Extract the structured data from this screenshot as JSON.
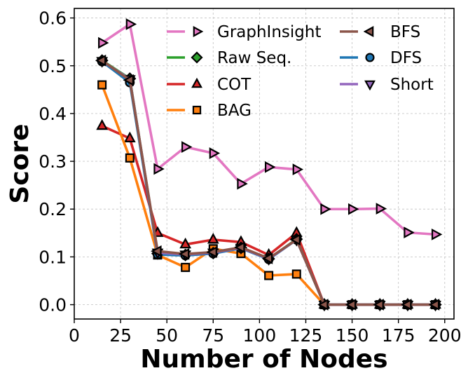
{
  "chart_data": {
    "type": "line",
    "title": "",
    "xlabel": "Number of Nodes",
    "ylabel": "Score",
    "xlim": [
      0,
      205
    ],
    "ylim": [
      -0.03,
      0.62
    ],
    "xticks": [
      0,
      25,
      50,
      75,
      100,
      125,
      150,
      175,
      200
    ],
    "yticks": [
      0.0,
      0.1,
      0.2,
      0.3,
      0.4,
      0.5,
      0.6
    ],
    "xtick_labels": [
      "0",
      "25",
      "50",
      "75",
      "100",
      "125",
      "150",
      "175",
      "200"
    ],
    "ytick_labels": [
      "0.0",
      "0.1",
      "0.2",
      "0.3",
      "0.4",
      "0.5",
      "0.6"
    ],
    "grid": true,
    "legend_position": "upper-right",
    "series": [
      {
        "name": "GraphInsight",
        "color": "#e377c2",
        "marker": "triangle-right",
        "x": [
          15,
          30,
          45,
          60,
          75,
          90,
          105,
          120,
          135,
          150,
          165,
          180,
          195
        ],
        "y": [
          0.548,
          0.587,
          0.284,
          0.33,
          0.317,
          0.253,
          0.288,
          0.283,
          0.2,
          0.2,
          0.201,
          0.151,
          0.147
        ]
      },
      {
        "name": "Raw Seq.",
        "color": "#2ca02c",
        "marker": "diamond",
        "x": [
          15,
          30,
          45,
          60,
          75,
          90,
          105,
          120,
          135,
          150,
          165,
          180,
          195
        ],
        "y": [
          0.511,
          0.473,
          0.107,
          0.104,
          0.108,
          0.119,
          0.096,
          0.137,
          0.0,
          0.0,
          0.0,
          0.0,
          0.0
        ]
      },
      {
        "name": "COT",
        "color": "#d62728",
        "marker": "triangle-up",
        "x": [
          15,
          30,
          45,
          60,
          75,
          90,
          105,
          120,
          135,
          150,
          165,
          180,
          195
        ],
        "y": [
          0.374,
          0.348,
          0.15,
          0.126,
          0.136,
          0.131,
          0.104,
          0.15,
          0.0,
          0.0,
          0.0,
          0.0,
          0.0
        ]
      },
      {
        "name": "BAG",
        "color": "#ff7f0e",
        "marker": "square",
        "x": [
          15,
          30,
          45,
          60,
          75,
          90,
          105,
          120,
          135,
          150,
          165,
          180,
          195
        ],
        "y": [
          0.46,
          0.307,
          0.104,
          0.078,
          0.117,
          0.107,
          0.061,
          0.064,
          0.0,
          0.0,
          0.0,
          0.0,
          0.0
        ]
      },
      {
        "name": "BFS",
        "color": "#8c564b",
        "marker": "triangle-left",
        "x": [
          15,
          30,
          45,
          60,
          75,
          90,
          105,
          120,
          135,
          150,
          165,
          180,
          195
        ],
        "y": [
          0.511,
          0.47,
          0.112,
          0.106,
          0.11,
          0.12,
          0.097,
          0.136,
          0.0,
          0.0,
          0.0,
          0.0,
          0.0
        ]
      },
      {
        "name": "DFS",
        "color": "#1f77b4",
        "marker": "circle",
        "x": [
          15,
          30,
          45,
          60,
          75,
          90,
          105,
          120,
          135,
          150,
          165,
          180,
          195
        ],
        "y": [
          0.509,
          0.465,
          0.105,
          0.103,
          0.107,
          0.118,
          0.095,
          0.136,
          0.0,
          0.0,
          0.0,
          0.0,
          0.0
        ]
      },
      {
        "name": "Short",
        "color": "#9467bd",
        "marker": "triangle-down",
        "x": [
          15,
          30,
          45,
          60,
          75,
          90,
          105,
          120,
          135,
          150,
          165,
          180,
          195
        ],
        "y": [
          0.51,
          0.472,
          0.109,
          0.105,
          0.109,
          0.119,
          0.096,
          0.136,
          0.0,
          0.0,
          0.0,
          0.0,
          0.0
        ]
      }
    ]
  }
}
